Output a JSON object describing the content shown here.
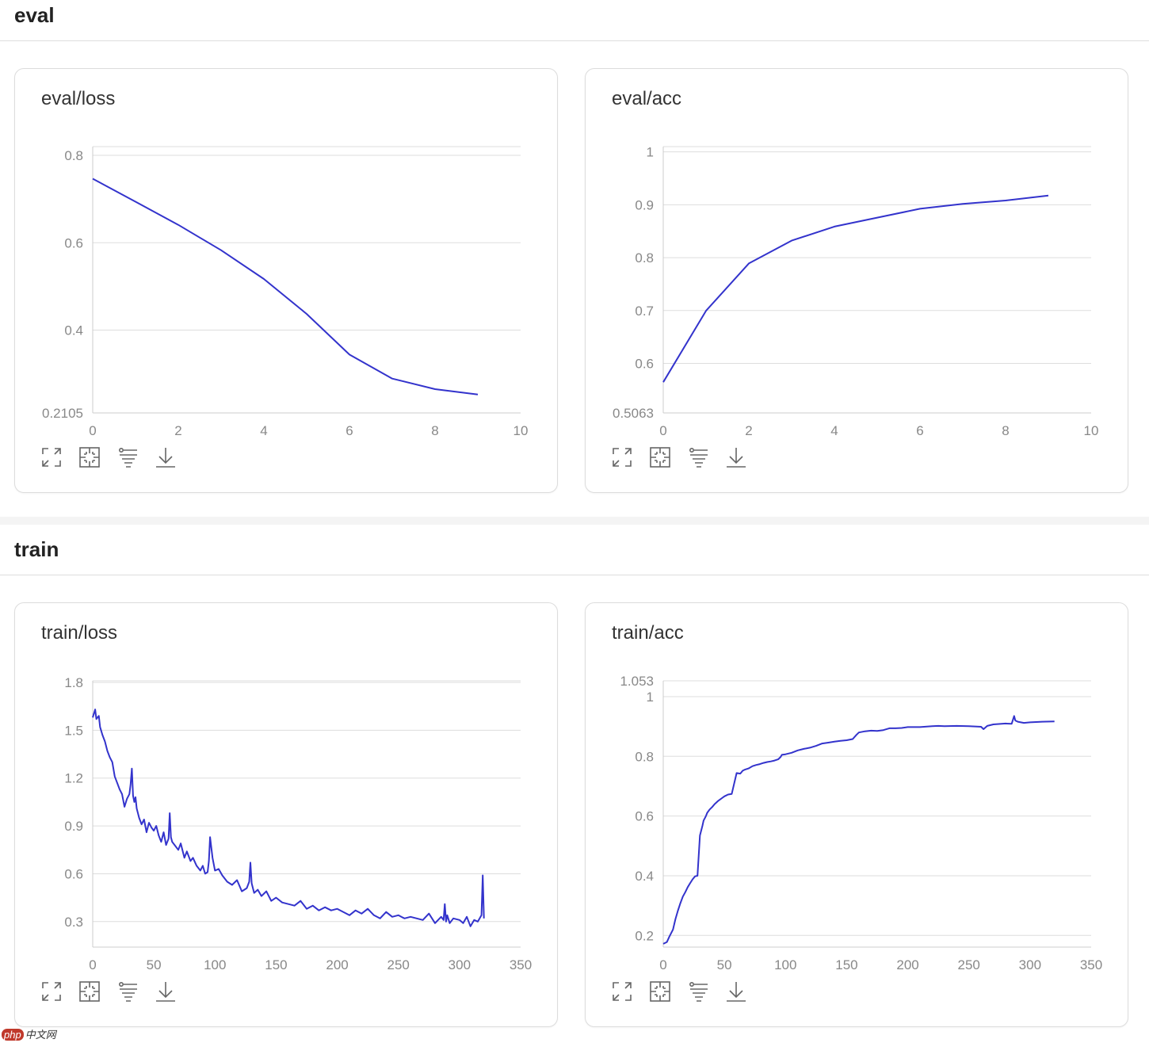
{
  "sections": [
    {
      "title": "eval"
    },
    {
      "title": "train"
    }
  ],
  "toolbar": {
    "icons": [
      "expand-icon",
      "fit-icon",
      "filter-icon",
      "download-icon"
    ]
  },
  "colors": {
    "line": "#3333cc",
    "grid": "#dddddd",
    "axis": "#cccccc",
    "tick": "#888888"
  },
  "watermark": {
    "logo": "php",
    "text": "中文网"
  },
  "chart_data": [
    {
      "id": "eval-loss",
      "type": "line",
      "title": "eval/loss",
      "xlim": [
        0,
        10
      ],
      "ylim": [
        0.2105,
        0.82
      ],
      "xticks": [
        0,
        2,
        4,
        6,
        8,
        10
      ],
      "xtick_labels": [
        "0",
        "2",
        "4",
        "6",
        "8",
        "10"
      ],
      "yticks": [
        0.2105,
        0.4,
        0.6,
        0.8
      ],
      "ytick_labels": [
        "0.2105",
        "0.4",
        "0.6",
        "0.8"
      ],
      "x": [
        0,
        1,
        2,
        3,
        4,
        5,
        6,
        7,
        8,
        9
      ],
      "y": [
        0.7465,
        0.694,
        0.641,
        0.583,
        0.517,
        0.437,
        0.344,
        0.289,
        0.265,
        0.2525
      ]
    },
    {
      "id": "eval-acc",
      "type": "line",
      "title": "eval/acc",
      "xlim": [
        0,
        10
      ],
      "ylim": [
        0.5063,
        1.01
      ],
      "xticks": [
        0,
        2,
        4,
        6,
        8,
        10
      ],
      "xtick_labels": [
        "0",
        "2",
        "4",
        "6",
        "8",
        "10"
      ],
      "yticks": [
        0.5063,
        0.6,
        0.7,
        0.8,
        0.9,
        1
      ],
      "ytick_labels": [
        "0.5063",
        "0.6",
        "0.7",
        "0.8",
        "0.9",
        "1"
      ],
      "x": [
        0,
        1,
        2,
        3,
        4,
        5,
        6,
        7,
        8,
        9
      ],
      "y": [
        0.5645,
        0.6995,
        0.789,
        0.8322,
        0.8587,
        0.8757,
        0.8924,
        0.9018,
        0.9081,
        0.9175
      ]
    },
    {
      "id": "train-loss",
      "type": "line",
      "title": "train/loss",
      "xlim": [
        0,
        350
      ],
      "ylim": [
        0.14,
        1.81
      ],
      "xticks": [
        0,
        50,
        100,
        150,
        200,
        250,
        300,
        350
      ],
      "xtick_labels": [
        "0",
        "50",
        "100",
        "150",
        "200",
        "250",
        "300",
        "350"
      ],
      "yticks": [
        0.3,
        0.6,
        0.9,
        1.2,
        1.5,
        1.8
      ],
      "ytick_labels": [
        "0.3",
        "0.6",
        "0.9",
        "1.2",
        "1.5",
        "1.8"
      ],
      "x": [
        0,
        2,
        3,
        5,
        6,
        8,
        10,
        12,
        14,
        16,
        18,
        20,
        22,
        24,
        26,
        28,
        30,
        31,
        32,
        33,
        34,
        35,
        36,
        38,
        40,
        42,
        44,
        46,
        48,
        50,
        52,
        54,
        56,
        58,
        60,
        62,
        63,
        64,
        65,
        67,
        70,
        72,
        75,
        77,
        80,
        82,
        85,
        88,
        90,
        92,
        94,
        95,
        96,
        98,
        100,
        103,
        106,
        110,
        114,
        118,
        122,
        126,
        128,
        129,
        130,
        132,
        135,
        138,
        142,
        146,
        150,
        155,
        160,
        165,
        170,
        175,
        180,
        185,
        190,
        195,
        200,
        205,
        210,
        215,
        220,
        225,
        230,
        235,
        240,
        245,
        250,
        255,
        260,
        265,
        270,
        275,
        280,
        285,
        287,
        288,
        289,
        290,
        292,
        295,
        300,
        303,
        306,
        309,
        312,
        315,
        318,
        319,
        320
      ],
      "y": [
        1.58,
        1.63,
        1.57,
        1.59,
        1.52,
        1.47,
        1.43,
        1.37,
        1.33,
        1.3,
        1.21,
        1.17,
        1.13,
        1.1,
        1.02,
        1.07,
        1.1,
        1.16,
        1.26,
        1.09,
        1.05,
        1.08,
        1.01,
        0.95,
        0.91,
        0.94,
        0.86,
        0.92,
        0.89,
        0.87,
        0.9,
        0.84,
        0.8,
        0.86,
        0.78,
        0.82,
        0.98,
        0.83,
        0.8,
        0.78,
        0.75,
        0.79,
        0.7,
        0.74,
        0.68,
        0.7,
        0.65,
        0.62,
        0.65,
        0.6,
        0.61,
        0.68,
        0.83,
        0.7,
        0.62,
        0.63,
        0.59,
        0.55,
        0.53,
        0.56,
        0.49,
        0.51,
        0.55,
        0.67,
        0.54,
        0.48,
        0.5,
        0.46,
        0.49,
        0.43,
        0.45,
        0.42,
        0.41,
        0.4,
        0.43,
        0.38,
        0.4,
        0.37,
        0.39,
        0.37,
        0.38,
        0.36,
        0.34,
        0.37,
        0.35,
        0.38,
        0.34,
        0.32,
        0.36,
        0.33,
        0.34,
        0.32,
        0.33,
        0.32,
        0.31,
        0.35,
        0.29,
        0.33,
        0.31,
        0.41,
        0.3,
        0.34,
        0.29,
        0.32,
        0.31,
        0.29,
        0.33,
        0.27,
        0.31,
        0.3,
        0.34,
        0.59,
        0.32
      ]
    },
    {
      "id": "train-acc",
      "type": "line",
      "title": "train/acc",
      "xlim": [
        0,
        350
      ],
      "ylim": [
        0.161,
        1.053
      ],
      "xticks": [
        0,
        50,
        100,
        150,
        200,
        250,
        300,
        350
      ],
      "xtick_labels": [
        "0",
        "50",
        "100",
        "150",
        "200",
        "250",
        "300",
        "350"
      ],
      "yticks": [
        0.2,
        0.4,
        0.6,
        0.8,
        1,
        1.053
      ],
      "ytick_labels": [
        "0.2",
        "0.4",
        "0.6",
        "0.8",
        "1",
        "1.053"
      ],
      "x": [
        0,
        3,
        5,
        8,
        10,
        12,
        14,
        16,
        18,
        20,
        22,
        24,
        26,
        28,
        30,
        32,
        33,
        34,
        35,
        36,
        38,
        40,
        42,
        45,
        48,
        50,
        53,
        56,
        60,
        63,
        65,
        67,
        70,
        73,
        76,
        79,
        82,
        85,
        88,
        91,
        94,
        96,
        97,
        100,
        105,
        110,
        115,
        120,
        125,
        130,
        135,
        140,
        145,
        150,
        155,
        158,
        160,
        165,
        170,
        175,
        180,
        185,
        190,
        195,
        200,
        210,
        220,
        225,
        230,
        240,
        250,
        260,
        262,
        265,
        270,
        280,
        285,
        287,
        288,
        290,
        295,
        300,
        310,
        320
      ],
      "y": [
        0.172,
        0.178,
        0.196,
        0.22,
        0.255,
        0.283,
        0.308,
        0.33,
        0.345,
        0.362,
        0.375,
        0.388,
        0.398,
        0.4,
        0.535,
        0.567,
        0.585,
        0.593,
        0.601,
        0.611,
        0.622,
        0.63,
        0.64,
        0.651,
        0.66,
        0.666,
        0.672,
        0.674,
        0.744,
        0.742,
        0.752,
        0.756,
        0.76,
        0.767,
        0.771,
        0.774,
        0.778,
        0.781,
        0.783,
        0.786,
        0.79,
        0.798,
        0.805,
        0.807,
        0.812,
        0.82,
        0.825,
        0.829,
        0.835,
        0.843,
        0.846,
        0.849,
        0.852,
        0.854,
        0.858,
        0.872,
        0.88,
        0.884,
        0.886,
        0.885,
        0.888,
        0.894,
        0.894,
        0.895,
        0.898,
        0.898,
        0.901,
        0.902,
        0.901,
        0.902,
        0.901,
        0.899,
        0.891,
        0.902,
        0.907,
        0.91,
        0.909,
        0.935,
        0.92,
        0.916,
        0.912,
        0.914,
        0.916,
        0.917
      ]
    }
  ]
}
